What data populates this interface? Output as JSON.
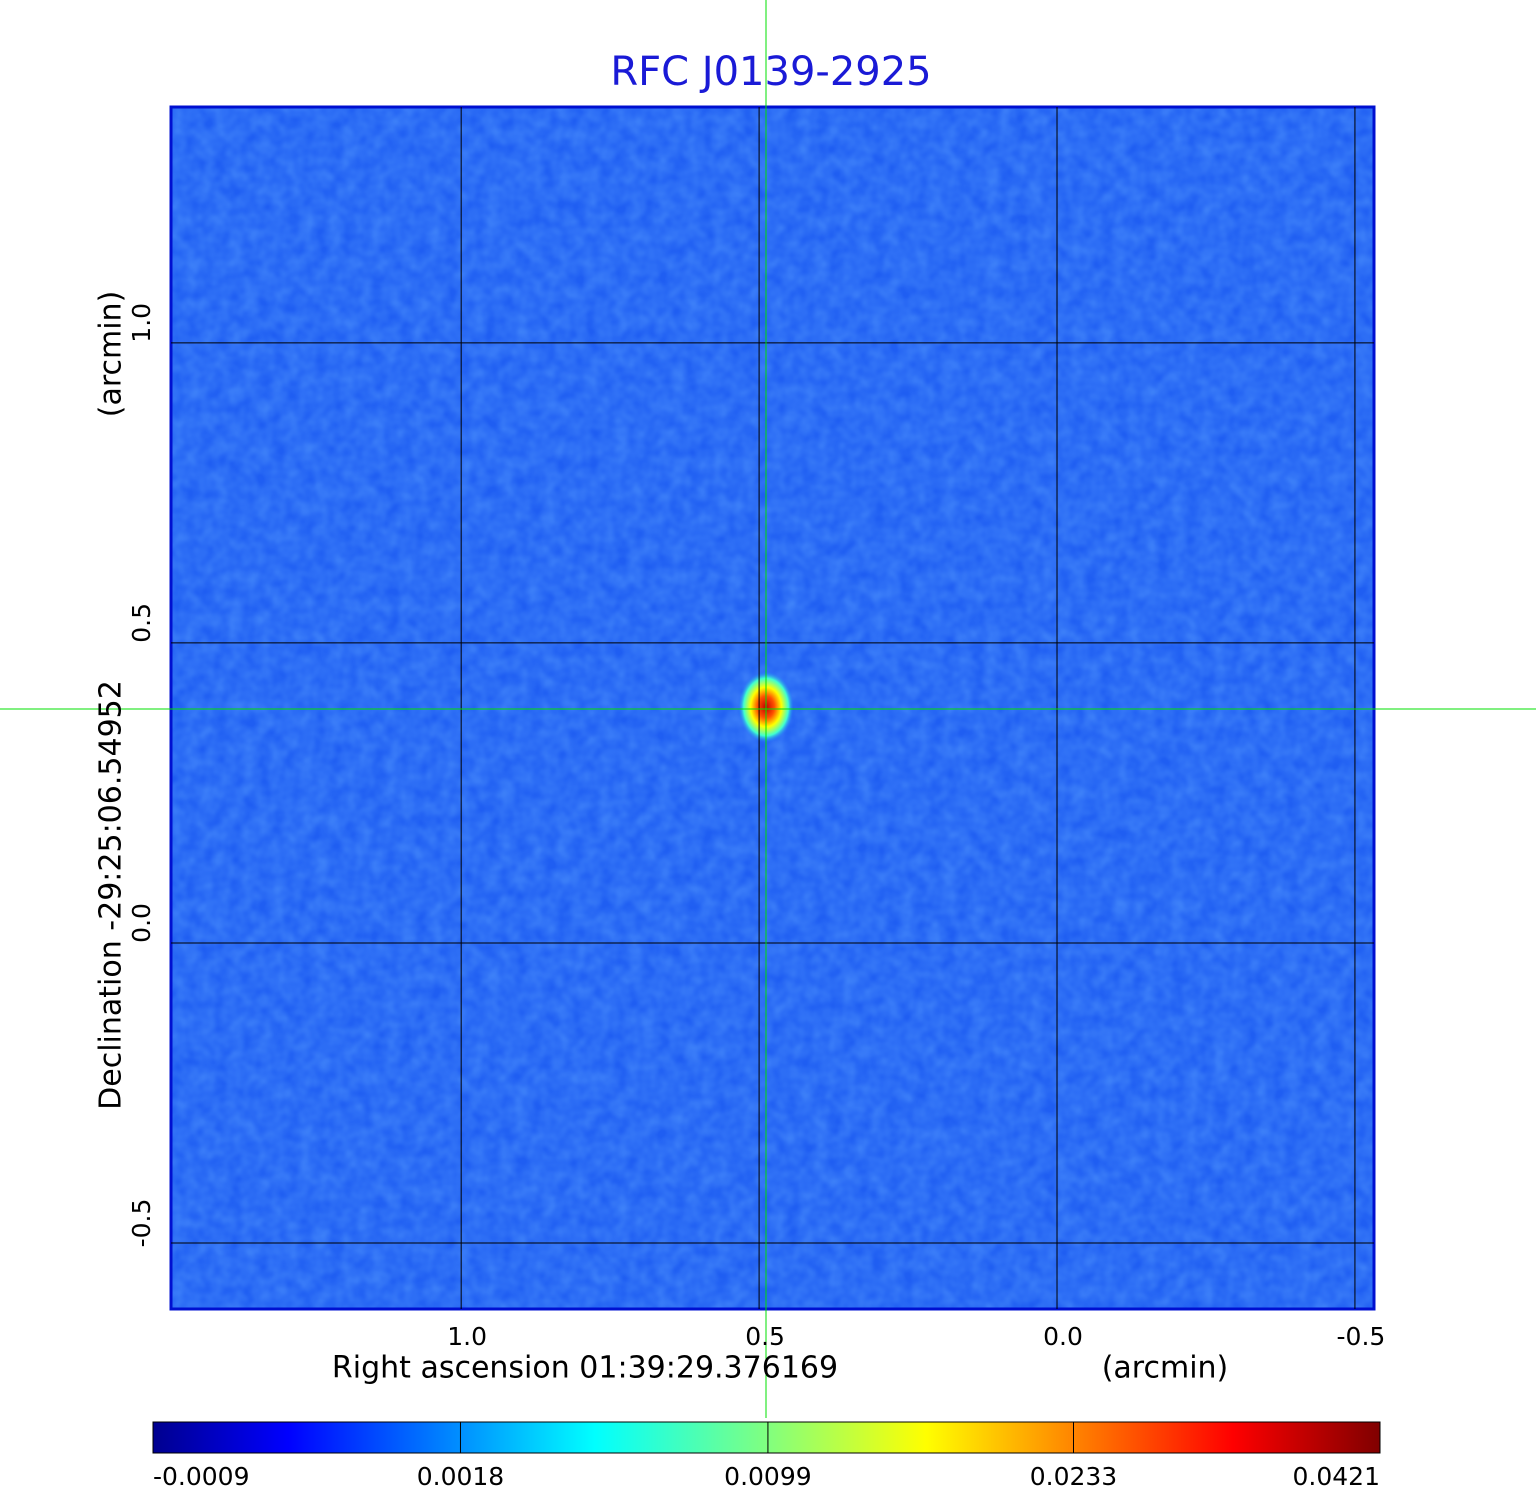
{
  "chart_data": {
    "type": "image",
    "title": "RFC J0139-2925",
    "x_label": "Right ascension  01:39:29.376169",
    "x_unit": "(arcmin)",
    "y_label": "Declination  -29:25:06.54952",
    "y_unit": "(arcmin)",
    "xlim": [
      1.487,
      -0.532
    ],
    "ylim": [
      -0.61,
      1.393
    ],
    "xticks": [
      {
        "value": 1,
        "label": "1.0"
      },
      {
        "value": 0.5,
        "label": "0.5"
      },
      {
        "value": 0,
        "label": "0.0"
      },
      {
        "value": -0.5,
        "label": "-0.5"
      }
    ],
    "yticks": [
      {
        "value": 1,
        "label": "1.0"
      },
      {
        "value": 0.5,
        "label": "0.5"
      },
      {
        "value": 0,
        "label": "0.0"
      },
      {
        "value": -0.5,
        "label": "-0.5"
      }
    ],
    "grid": true,
    "colormap": "jet",
    "colorbar_scale": "sqrt",
    "colorbar_lim": [
      -0.0009,
      0.0421
    ],
    "colorbar_ticks": [
      -0.0009,
      0.0018,
      0.0099,
      0.0233,
      0.0421
    ]
  }
}
